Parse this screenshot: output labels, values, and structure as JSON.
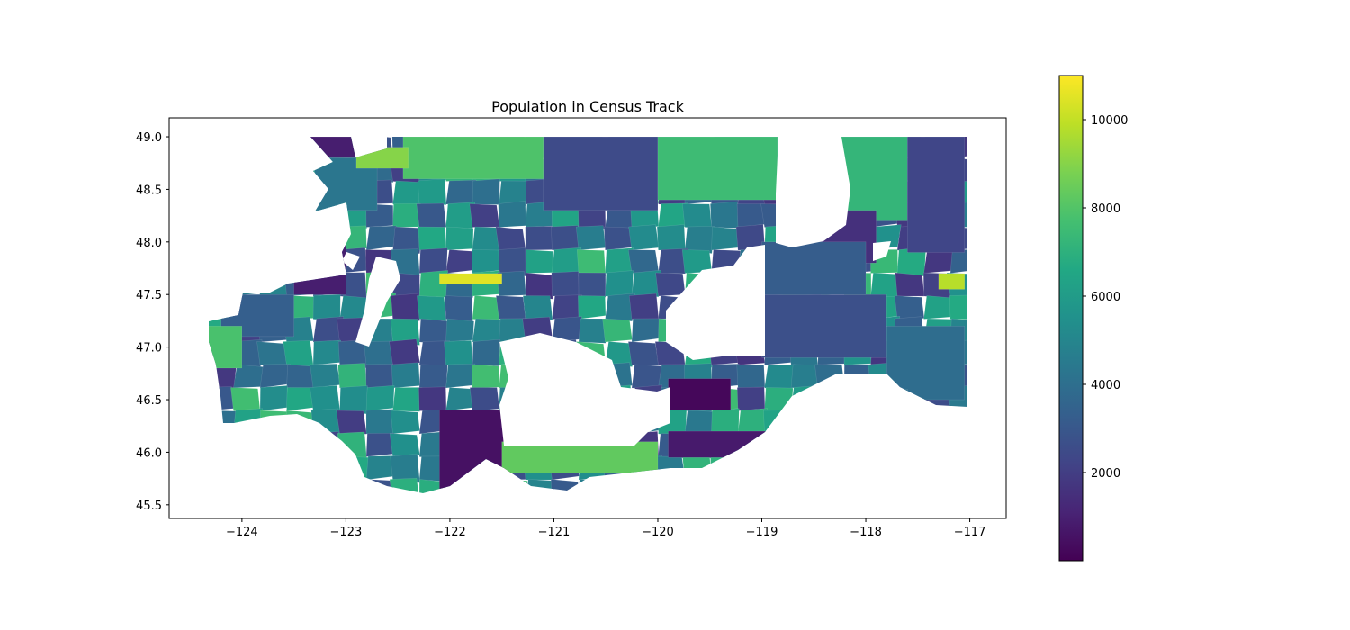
{
  "figure": {
    "title": "Population in Census Track"
  },
  "chart_data": {
    "type": "choropleth",
    "title": "Population in Census Track",
    "xlabel": "",
    "ylabel": "",
    "xlim": [
      -124.7,
      -116.65
    ],
    "ylim": [
      45.37,
      49.18
    ],
    "x_ticks": [
      "−124",
      "−123",
      "−122",
      "−121",
      "−120",
      "−119",
      "−118",
      "−117"
    ],
    "x_tick_values": [
      -124,
      -123,
      -122,
      -121,
      -120,
      -119,
      -118,
      -117
    ],
    "y_ticks": [
      "45.5",
      "46.0",
      "46.5",
      "47.0",
      "47.5",
      "48.0",
      "48.5",
      "49.0"
    ],
    "y_tick_values": [
      45.5,
      46.0,
      46.5,
      47.0,
      47.5,
      48.0,
      48.5,
      49.0
    ],
    "colorbar": {
      "colormap": "viridis",
      "vmin": 0,
      "vmax": 11000,
      "ticks": [
        "2000",
        "4000",
        "6000",
        "8000",
        "10000"
      ],
      "tick_values": [
        2000,
        4000,
        6000,
        8000,
        10000
      ]
    },
    "regions": [
      {
        "lon": [
          -123.5,
          -122.9
        ],
        "lat": [
          48.8,
          49.0
        ],
        "value": 900
      },
      {
        "lon": [
          -123.3,
          -122.7
        ],
        "lat": [
          48.3,
          48.8
        ],
        "value": 4300
      },
      {
        "lon": [
          -122.45,
          -121.1
        ],
        "lat": [
          48.6,
          49.0
        ],
        "value": 7900
      },
      {
        "lon": [
          -122.9,
          -122.4
        ],
        "lat": [
          48.7,
          48.9
        ],
        "value": 9000
      },
      {
        "lon": [
          -121.1,
          -120.0
        ],
        "lat": [
          48.3,
          49.0
        ],
        "value": 2500
      },
      {
        "lon": [
          -120.0,
          -118.85
        ],
        "lat": [
          48.4,
          49.0
        ],
        "value": 7500
      },
      {
        "lon": [
          -118.3,
          -117.6
        ],
        "lat": [
          48.2,
          49.0
        ],
        "value": 7200
      },
      {
        "lon": [
          -117.6,
          -117.05
        ],
        "lat": [
          47.9,
          49.0
        ],
        "value": 2300
      },
      {
        "lon": [
          -118.5,
          -117.9
        ],
        "lat": [
          47.8,
          48.3
        ],
        "value": 1500
      },
      {
        "lon": [
          -123.5,
          -123.0
        ],
        "lat": [
          47.5,
          47.98
        ],
        "value": 900
      },
      {
        "lon": [
          -124.2,
          -123.5
        ],
        "lat": [
          47.1,
          47.5
        ],
        "value": 3300
      },
      {
        "lon": [
          -124.35,
          -124.0
        ],
        "lat": [
          46.8,
          47.2
        ],
        "value": 7800
      },
      {
        "lon": [
          -122.1,
          -121.4
        ],
        "lat": [
          45.6,
          46.4
        ],
        "value": 500
      },
      {
        "lon": [
          -121.5,
          -120.0
        ],
        "lat": [
          45.8,
          46.1
        ],
        "value": 8300
      },
      {
        "lon": [
          -119.9,
          -119.3
        ],
        "lat": [
          46.4,
          46.7
        ],
        "value": 200
      },
      {
        "lon": [
          -119.0,
          -118.0
        ],
        "lat": [
          47.5,
          48.0
        ],
        "value": 3200
      },
      {
        "lon": [
          -119.0,
          -117.8
        ],
        "lat": [
          46.9,
          47.5
        ],
        "value": 2700
      },
      {
        "lon": [
          -117.8,
          -117.05
        ],
        "lat": [
          46.5,
          47.2
        ],
        "value": 3900
      },
      {
        "lon": [
          -118.5,
          -117.6
        ],
        "lat": [
          46.0,
          46.6
        ],
        "value": 4100
      },
      {
        "lon": [
          -122.1,
          -121.5
        ],
        "lat": [
          47.6,
          47.7
        ],
        "value": 10500
      },
      {
        "lon": [
          -117.3,
          -117.05
        ],
        "lat": [
          47.55,
          47.7
        ],
        "value": 9800
      },
      {
        "lon": [
          -119.9,
          -118.8
        ],
        "lat": [
          45.95,
          46.2
        ],
        "value": 800
      }
    ]
  }
}
